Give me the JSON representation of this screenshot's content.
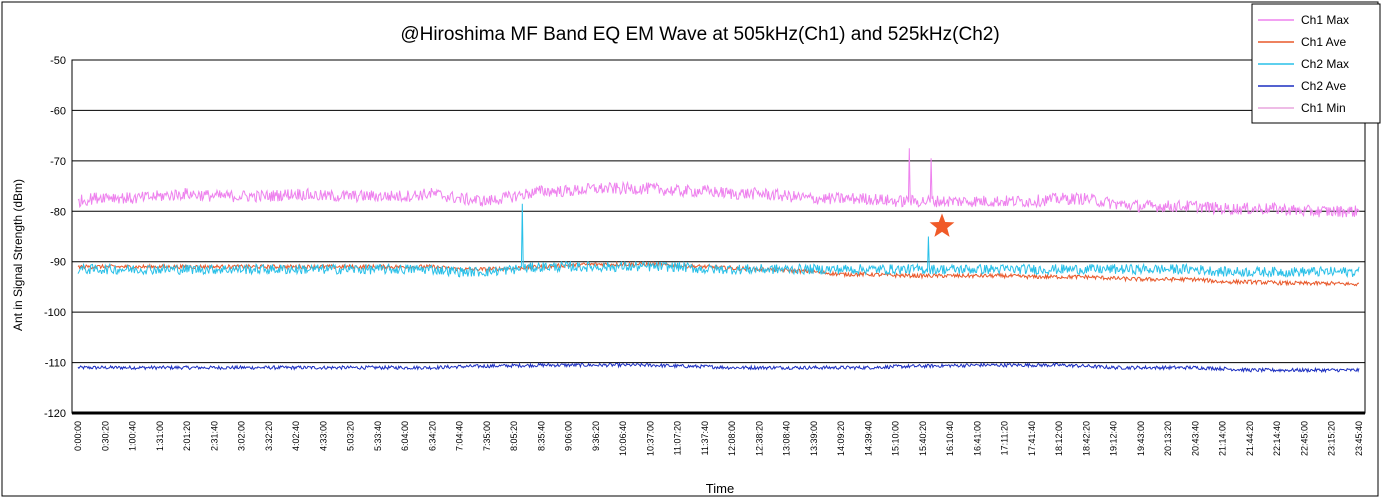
{
  "chart_data": {
    "type": "line",
    "title": "@Hiroshima MF Band EQ EM Wave at 505kHz(Ch1) and 525kHz(Ch2)",
    "xlabel": "Time",
    "ylabel": "Ant in Signal Strength (dBm)",
    "ylim": [
      -120,
      -50
    ],
    "yticks": [
      -50,
      -60,
      -70,
      -80,
      -90,
      -100,
      -110,
      -120
    ],
    "ytick_labels": [
      "-50",
      "-60",
      "-70",
      "-80",
      "-90",
      "-100",
      "-110",
      "-120"
    ],
    "grid": "horizontal",
    "legend_position": "top-right",
    "x_categories": [
      "0:00:00",
      "0:30:20",
      "1:00:40",
      "1:31:00",
      "2:01:20",
      "2:31:40",
      "3:02:00",
      "3:32:20",
      "4:02:40",
      "4:33:00",
      "5:03:20",
      "5:33:40",
      "6:04:00",
      "6:34:20",
      "7:04:40",
      "7:35:00",
      "8:05:20",
      "8:35:40",
      "9:06:00",
      "9:36:20",
      "10:06:40",
      "10:37:00",
      "11:07:20",
      "11:37:40",
      "12:08:00",
      "12:38:20",
      "13:08:40",
      "13:39:00",
      "14:09:20",
      "14:39:40",
      "15:10:00",
      "15:40:20",
      "16:10:40",
      "16:41:00",
      "17:11:20",
      "17:41:40",
      "18:12:00",
      "18:42:20",
      "19:12:40",
      "19:43:00",
      "20:13:20",
      "20:43:40",
      "21:14:00",
      "21:44:20",
      "22:14:40",
      "22:45:00",
      "23:15:20",
      "23:45:40"
    ],
    "series": [
      {
        "name": "Ch1 Max",
        "color": "#ee82ee",
        "noise": 1.2,
        "values": [
          -78,
          -77,
          -77.5,
          -77,
          -76.5,
          -77,
          -77,
          -77,
          -76.5,
          -77,
          -77,
          -77,
          -77,
          -76.5,
          -77.5,
          -78,
          -77,
          -76,
          -76,
          -75.5,
          -75.5,
          -75.5,
          -76,
          -76,
          -76.5,
          -76.5,
          -77,
          -77.5,
          -77.5,
          -77.5,
          -78,
          -78,
          -78,
          -78,
          -78,
          -78,
          -77.5,
          -77.5,
          -78.5,
          -79,
          -79,
          -79,
          -79.5,
          -79.5,
          -79.5,
          -80,
          -80,
          -80
        ]
      },
      {
        "name": "Ch1 Ave",
        "color": "#e8582a",
        "noise": 0.4,
        "values": [
          -91,
          -91,
          -91,
          -91,
          -91,
          -91,
          -91,
          -91,
          -91,
          -91,
          -91,
          -91,
          -91,
          -91,
          -91.5,
          -91.5,
          -91.3,
          -91,
          -90.7,
          -90.5,
          -90.5,
          -90.5,
          -90.8,
          -91,
          -91.3,
          -91.5,
          -91.7,
          -92,
          -92.5,
          -92.5,
          -92.7,
          -92.8,
          -92.8,
          -92.8,
          -92.8,
          -93,
          -93,
          -93,
          -93.3,
          -93.5,
          -93.5,
          -93.5,
          -94,
          -94,
          -94.2,
          -94.3,
          -94.3,
          -94.5
        ]
      },
      {
        "name": "Ch2 Max",
        "color": "#29c0e8",
        "noise": 1.0,
        "values": [
          -91.5,
          -91.5,
          -91.5,
          -91.5,
          -91.5,
          -91.5,
          -91.5,
          -91.5,
          -91.5,
          -91.5,
          -91.5,
          -91.5,
          -91.5,
          -91.5,
          -92,
          -92,
          -91.5,
          -91,
          -91,
          -91,
          -91,
          -91,
          -91,
          -91.5,
          -91.5,
          -91.5,
          -91.5,
          -91.5,
          -91.5,
          -91.5,
          -91.5,
          -91.5,
          -91.5,
          -91.5,
          -91.5,
          -91.5,
          -91.5,
          -91.5,
          -91.5,
          -91.5,
          -91.5,
          -91.5,
          -92,
          -92,
          -92,
          -92,
          -92,
          -92
        ]
      },
      {
        "name": "Ch2 Ave",
        "color": "#1c2fc0",
        "noise": 0.35,
        "values": [
          -111,
          -111,
          -111,
          -111,
          -111,
          -111,
          -111,
          -111,
          -111,
          -111,
          -111,
          -111,
          -111,
          -111,
          -110.8,
          -110.7,
          -110.6,
          -110.5,
          -110.5,
          -110.5,
          -110.5,
          -110.5,
          -110.7,
          -110.8,
          -111,
          -111,
          -111,
          -111,
          -111,
          -111,
          -110.8,
          -110.7,
          -110.6,
          -110.5,
          -110.5,
          -110.5,
          -110.5,
          -110.7,
          -111,
          -111,
          -111,
          -111,
          -111.2,
          -111.5,
          -111.5,
          -111.5,
          -111.5,
          -111.5
        ]
      },
      {
        "name": "Ch1 Min",
        "color": "#e9a6dd",
        "noise": 0,
        "values": []
      }
    ],
    "spikes": [
      {
        "series": "Ch2 Max",
        "x_index": 16.3,
        "value": -78.5
      },
      {
        "series": "Ch1 Max",
        "x_index": 30.5,
        "value": -67.5
      },
      {
        "series": "Ch1 Max",
        "x_index": 31.3,
        "value": -69.5
      },
      {
        "series": "Ch2 Max",
        "x_index": 31.2,
        "value": -85
      }
    ],
    "annotations": [
      {
        "type": "star",
        "color": "#f05a28",
        "x_index": 31.7,
        "value": -83
      }
    ]
  }
}
